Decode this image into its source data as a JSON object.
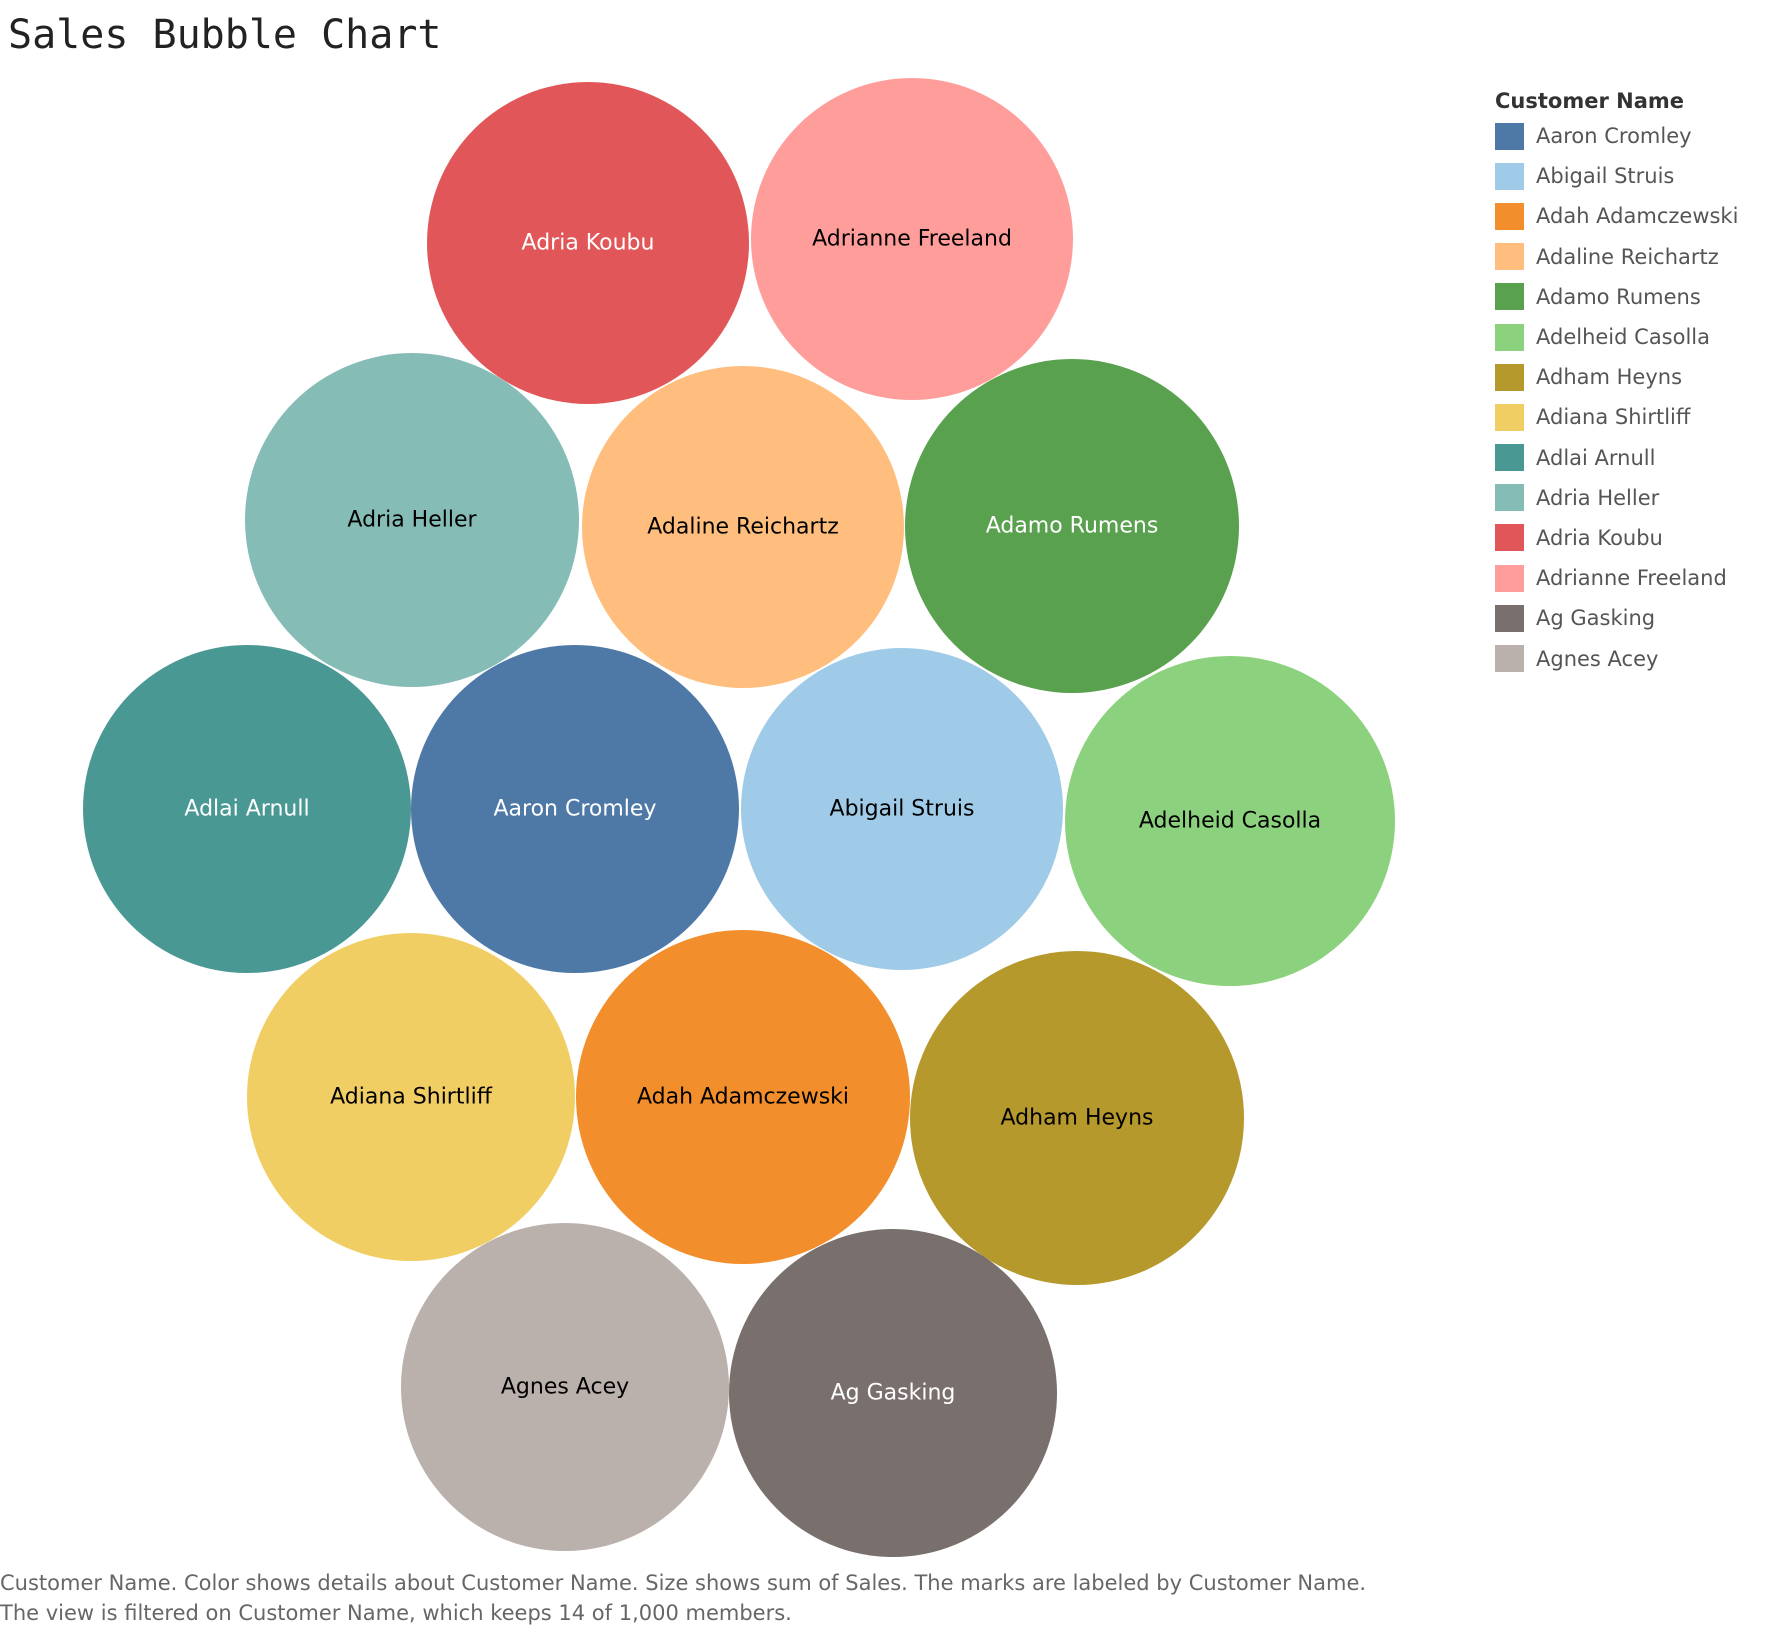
{
  "title": "Sales Bubble Chart",
  "legend": {
    "title": "Customer Name",
    "placement": "top-right"
  },
  "caption": {
    "line1": "Customer Name.  Color shows details about Customer Name.  Size shows sum of Sales.  The marks are labeled by Customer Name.",
    "line2": "The view is filtered on Customer Name, which keeps 14 of 1,000 members."
  },
  "chart_data": {
    "type": "bubble",
    "title": "Sales Bubble Chart",
    "size_field": "Sales",
    "color_field": "Customer Name",
    "label_field": "Customer Name",
    "grid": false,
    "series": [
      {
        "name": "Aaron Cromley",
        "color": "#4e79a7",
        "label_color": "#ffffff"
      },
      {
        "name": "Abigail Struis",
        "color": "#a0cbe8",
        "label_color": "#000000"
      },
      {
        "name": "Adah Adamczewski",
        "color": "#f28e2b",
        "label_color": "#000000"
      },
      {
        "name": "Adaline Reichartz",
        "color": "#ffbe7d",
        "label_color": "#000000"
      },
      {
        "name": "Adamo Rumens",
        "color": "#59a14f",
        "label_color": "#ffffff"
      },
      {
        "name": "Adelheid Casolla",
        "color": "#8cd17d",
        "label_color": "#000000"
      },
      {
        "name": "Adham Heyns",
        "color": "#b6992d",
        "label_color": "#000000"
      },
      {
        "name": "Adiana Shirtliff",
        "color": "#f1ce63",
        "label_color": "#000000"
      },
      {
        "name": "Adlai Arnull",
        "color": "#499894",
        "label_color": "#ffffff"
      },
      {
        "name": "Adria Heller",
        "color": "#86bcb6",
        "label_color": "#000000"
      },
      {
        "name": "Adria Koubu",
        "color": "#e15759",
        "label_color": "#ffffff"
      },
      {
        "name": "Adrianne Freeland",
        "color": "#ff9d9a",
        "label_color": "#000000"
      },
      {
        "name": "Ag Gasking",
        "color": "#79706e",
        "label_color": "#ffffff"
      },
      {
        "name": "Agnes Acey",
        "color": "#bab0ac",
        "label_color": "#000000"
      }
    ]
  }
}
